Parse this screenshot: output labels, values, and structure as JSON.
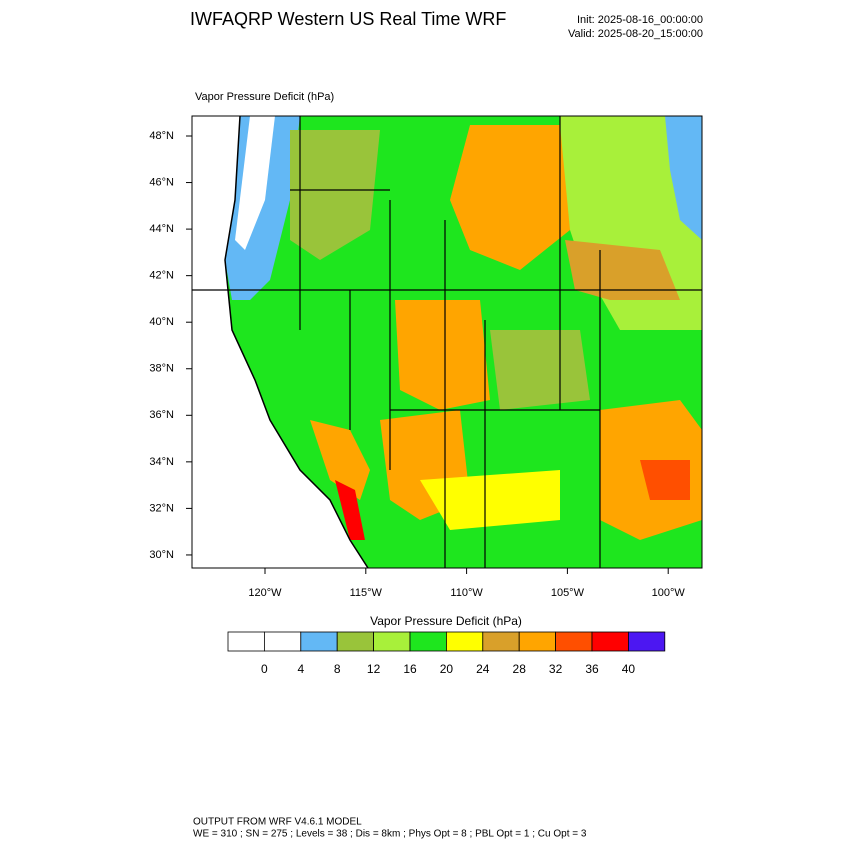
{
  "header": {
    "title": "IWFAQRP Western US Real Time WRF",
    "init": "Init: 2025-08-16_00:00:00",
    "valid": "Valid: 2025-08-20_15:00:00"
  },
  "map": {
    "subtitle": "Vapor Pressure Deficit   (hPa)",
    "lat_labels": [
      "48°N",
      "46°N",
      "44°N",
      "42°N",
      "40°N",
      "38°N",
      "36°N",
      "34°N",
      "32°N",
      "30°N"
    ],
    "lon_labels": [
      "120°W",
      "115°W",
      "110°W",
      "105°W",
      "100°W"
    ]
  },
  "colorbar": {
    "label": "Vapor Pressure Deficit  (hPa)",
    "colors": [
      "#ffffff",
      "#ffffff",
      "#63b8f5",
      "#99c43a",
      "#a8f03a",
      "#1ee61e",
      "#ffff00",
      "#d9a02a",
      "#ffa500",
      "#ff4f00",
      "#ff0000",
      "#4c17f2"
    ],
    "ticks": [
      0,
      4,
      8,
      12,
      16,
      20,
      24,
      28,
      32,
      36,
      40
    ]
  },
  "footer": {
    "line1": "OUTPUT FROM WRF V4.6.1 MODEL",
    "line2": "WE = 310 ; SN = 275 ; Levels = 38 ; Dis = 8km ; Phys Opt = 8 ; PBL Opt = 1 ; Cu Opt = 3"
  }
}
